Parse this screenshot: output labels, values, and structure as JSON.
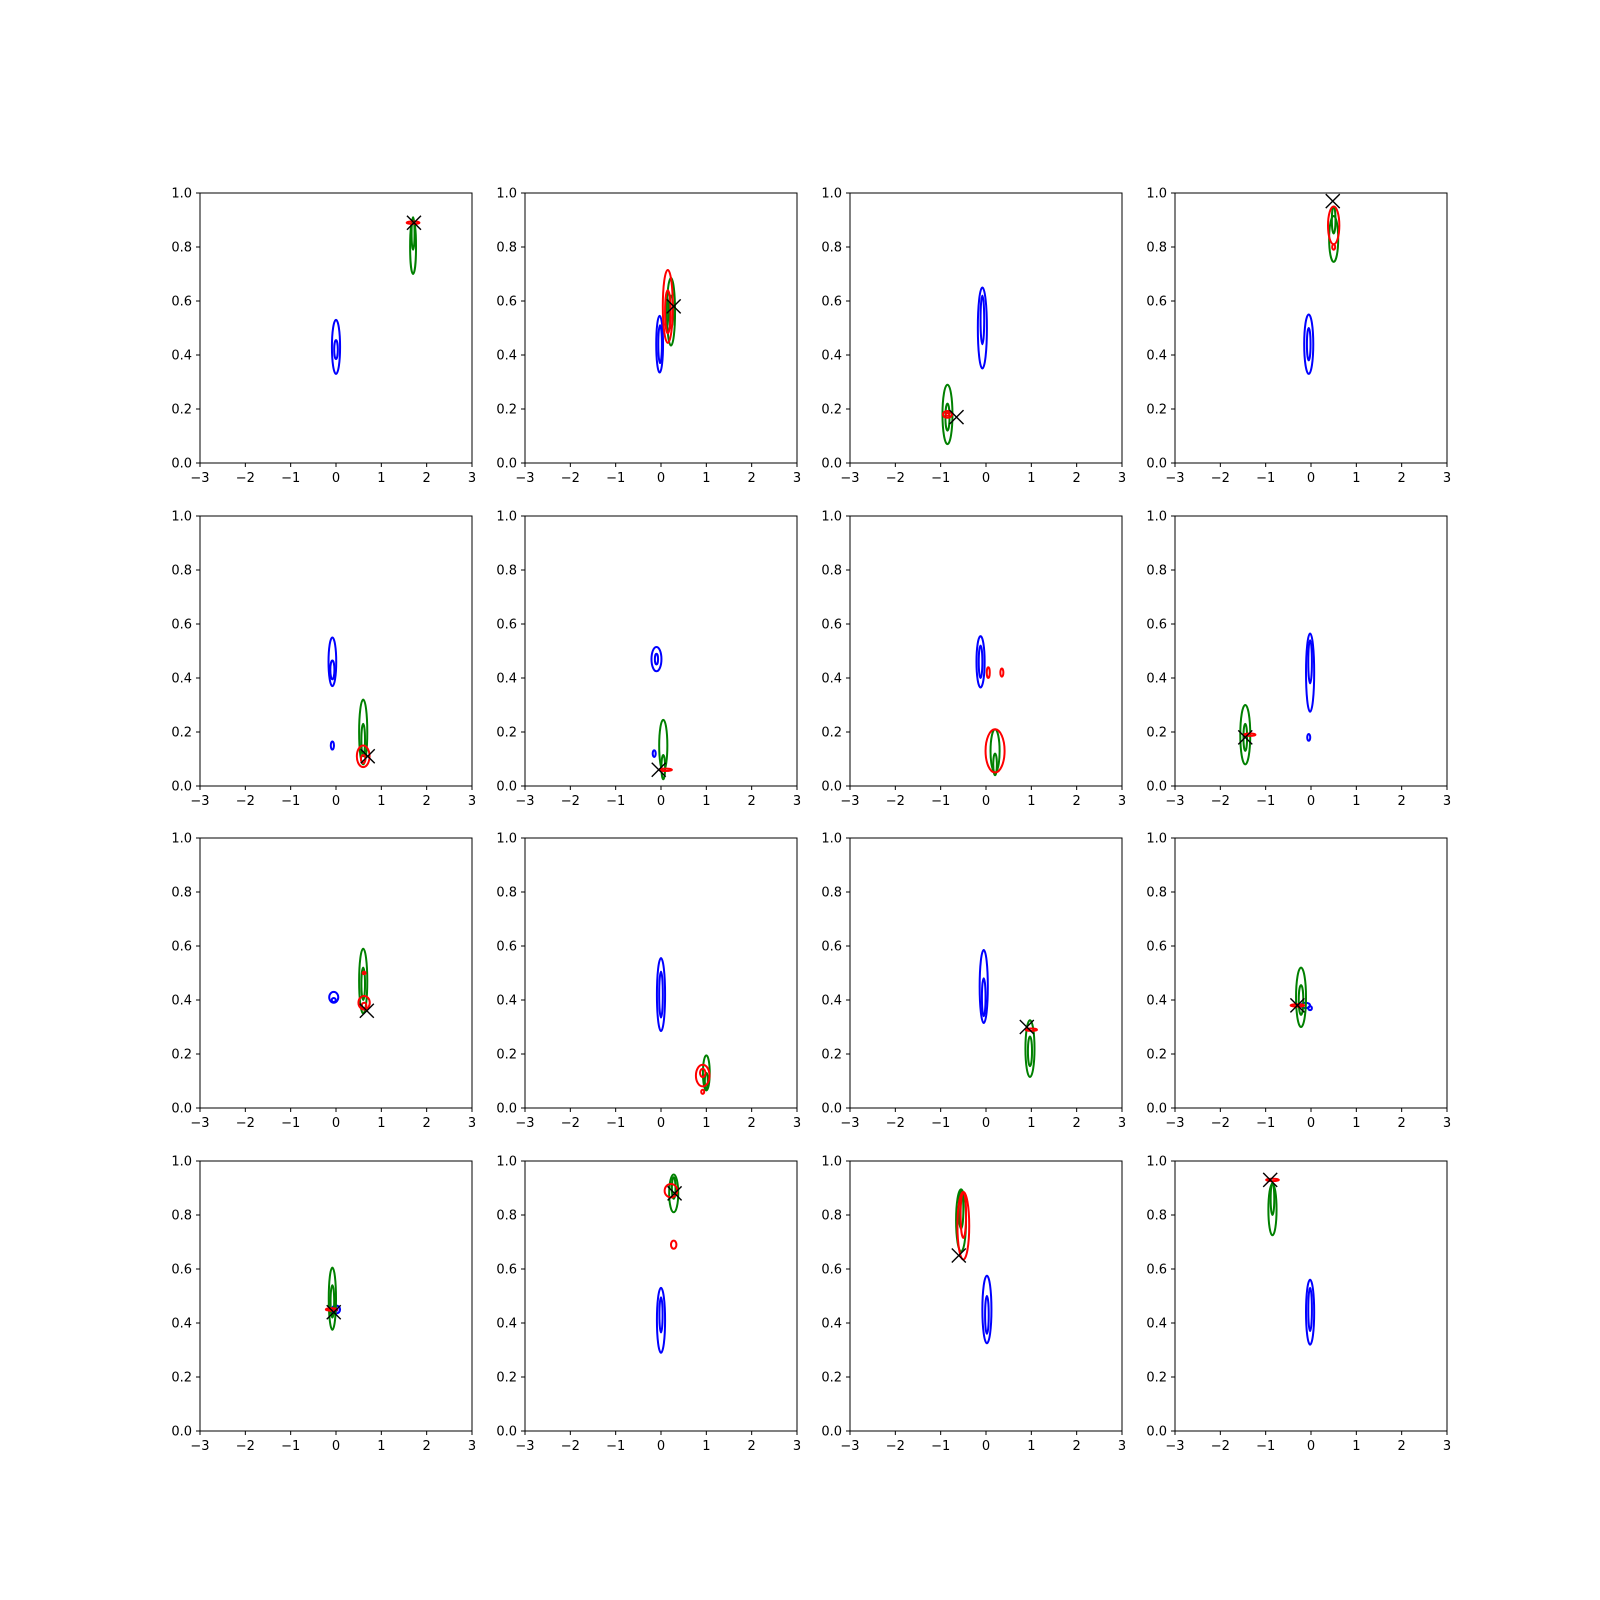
{
  "chart_data": {
    "type": "contour",
    "grid": {
      "rows": 4,
      "cols": 4
    },
    "xlim": [
      -3,
      3
    ],
    "ylim": [
      0,
      1
    ],
    "xticks": [
      "−3",
      "−2",
      "−1",
      "0",
      "1",
      "2",
      "3"
    ],
    "yticks": [
      "0.0",
      "0.2",
      "0.4",
      "0.6",
      "0.8",
      "1.0"
    ],
    "colors": {
      "blue": "#0000ff",
      "green": "#008000",
      "red": "#ff0000",
      "marker": "#000000"
    },
    "panels": [
      {
        "blue": [
          [
            0.0,
            0.43,
            0.18,
            0.2
          ],
          [
            0.0,
            0.42,
            0.08,
            0.07
          ]
        ],
        "green": [
          [
            1.7,
            0.8,
            0.13,
            0.2
          ],
          [
            1.7,
            0.85,
            0.06,
            0.12
          ]
        ],
        "red": [
          [
            1.7,
            0.89,
            0.28,
            0.006
          ]
        ],
        "marker": [
          1.72,
          0.89
        ]
      },
      {
        "blue": [
          [
            -0.03,
            0.44,
            0.15,
            0.21
          ],
          [
            -0.02,
            0.44,
            0.08,
            0.14
          ]
        ],
        "green": [
          [
            0.22,
            0.56,
            0.18,
            0.25
          ],
          [
            0.22,
            0.56,
            0.1,
            0.12
          ]
        ],
        "red": [
          [
            0.15,
            0.58,
            0.22,
            0.27
          ],
          [
            0.15,
            0.56,
            0.12,
            0.16
          ]
        ],
        "marker": [
          0.28,
          0.58
        ]
      },
      {
        "blue": [
          [
            -0.08,
            0.5,
            0.2,
            0.3
          ],
          [
            -0.08,
            0.53,
            0.08,
            0.18
          ]
        ],
        "green": [
          [
            -0.85,
            0.18,
            0.22,
            0.22
          ],
          [
            -0.85,
            0.17,
            0.09,
            0.1
          ]
        ],
        "red": [
          [
            -0.85,
            0.18,
            0.2,
            0.025
          ],
          [
            -0.85,
            0.18,
            0.08,
            0.01
          ]
        ],
        "marker": [
          -0.65,
          0.17
        ]
      },
      {
        "blue": [
          [
            -0.05,
            0.44,
            0.2,
            0.22
          ],
          [
            -0.05,
            0.44,
            0.08,
            0.12
          ]
        ],
        "green": [
          [
            0.5,
            0.83,
            0.2,
            0.17
          ],
          [
            0.5,
            0.9,
            0.08,
            0.1
          ]
        ],
        "red": [
          [
            0.5,
            0.88,
            0.25,
            0.14
          ],
          [
            0.5,
            0.8,
            0.05,
            0.02
          ]
        ],
        "marker": [
          0.48,
          0.97
        ]
      },
      {
        "blue": [
          [
            -0.08,
            0.46,
            0.17,
            0.18
          ],
          [
            -0.08,
            0.43,
            0.09,
            0.07
          ],
          [
            -0.08,
            0.15,
            0.07,
            0.03
          ]
        ],
        "green": [
          [
            0.6,
            0.2,
            0.18,
            0.24
          ],
          [
            0.6,
            0.17,
            0.08,
            0.12
          ]
        ],
        "red": [
          [
            0.6,
            0.11,
            0.28,
            0.08
          ],
          [
            0.6,
            0.1,
            0.1,
            0.03
          ]
        ],
        "marker": [
          0.7,
          0.11
        ]
      },
      {
        "blue": [
          [
            -0.1,
            0.47,
            0.22,
            0.09
          ],
          [
            -0.1,
            0.47,
            0.07,
            0.04
          ],
          [
            -0.15,
            0.12,
            0.03,
            0.025
          ]
        ],
        "green": [
          [
            0.05,
            0.15,
            0.18,
            0.19
          ],
          [
            0.05,
            0.07,
            0.08,
            0.09
          ]
        ],
        "red": [
          [
            0.1,
            0.06,
            0.28,
            0.006
          ]
        ],
        "marker": [
          -0.05,
          0.06
        ]
      },
      {
        "blue": [
          [
            -0.12,
            0.46,
            0.18,
            0.19
          ],
          [
            -0.12,
            0.46,
            0.08,
            0.12
          ]
        ],
        "green": [
          [
            0.2,
            0.13,
            0.2,
            0.16
          ],
          [
            0.2,
            0.08,
            0.08,
            0.08
          ]
        ],
        "red": [
          [
            0.2,
            0.13,
            0.42,
            0.16
          ],
          [
            0.05,
            0.42,
            0.06,
            0.04
          ],
          [
            0.35,
            0.42,
            0.04,
            0.03
          ]
        ],
        "marker": null
      },
      {
        "blue": [
          [
            -0.02,
            0.42,
            0.18,
            0.29
          ],
          [
            -0.02,
            0.46,
            0.08,
            0.16
          ],
          [
            -0.05,
            0.18,
            0.03,
            0.025
          ]
        ],
        "green": [
          [
            -1.45,
            0.19,
            0.22,
            0.22
          ],
          [
            -1.45,
            0.18,
            0.08,
            0.1
          ]
        ],
        "red": [
          [
            -1.35,
            0.19,
            0.25,
            0.006
          ]
        ],
        "marker": [
          -1.45,
          0.18
        ]
      },
      {
        "blue": [
          [
            -0.05,
            0.41,
            0.2,
            0.04
          ],
          [
            -0.05,
            0.4,
            0.09,
            0.015
          ]
        ],
        "green": [
          [
            0.6,
            0.47,
            0.18,
            0.24
          ],
          [
            0.6,
            0.46,
            0.08,
            0.12
          ]
        ],
        "red": [
          [
            0.62,
            0.39,
            0.25,
            0.05
          ],
          [
            0.62,
            0.38,
            0.1,
            0.02
          ],
          [
            0.62,
            0.5,
            0.015,
            0.006
          ]
        ],
        "marker": [
          0.68,
          0.36
        ]
      },
      {
        "blue": [
          [
            0.0,
            0.42,
            0.18,
            0.27
          ],
          [
            0.0,
            0.42,
            0.08,
            0.17
          ]
        ],
        "green": [
          [
            1.0,
            0.13,
            0.15,
            0.13
          ],
          [
            1.0,
            0.1,
            0.06,
            0.06
          ]
        ],
        "red": [
          [
            0.92,
            0.12,
            0.3,
            0.08
          ],
          [
            0.92,
            0.13,
            0.12,
            0.03
          ],
          [
            0.92,
            0.06,
            0.04,
            0.015
          ]
        ],
        "marker": null
      },
      {
        "blue": [
          [
            -0.05,
            0.45,
            0.18,
            0.27
          ],
          [
            -0.05,
            0.41,
            0.08,
            0.14
          ]
        ],
        "green": [
          [
            0.97,
            0.22,
            0.2,
            0.21
          ],
          [
            0.97,
            0.21,
            0.09,
            0.11
          ]
        ],
        "red": [
          [
            1.0,
            0.29,
            0.25,
            0.006
          ]
        ],
        "marker": [
          0.9,
          0.3
        ]
      },
      {
        "blue": [
          [
            -0.12,
            0.38,
            0.2,
            0.02
          ],
          [
            -0.02,
            0.37,
            0.08,
            0.015
          ]
        ],
        "green": [
          [
            -0.22,
            0.41,
            0.22,
            0.22
          ],
          [
            -0.22,
            0.4,
            0.1,
            0.11
          ]
        ],
        "red": [
          [
            -0.3,
            0.38,
            0.3,
            0.006
          ]
        ],
        "marker": [
          -0.3,
          0.38
        ]
      },
      {
        "blue": [
          [
            0.0,
            0.45,
            0.18,
            0.03
          ],
          [
            0.0,
            0.45,
            0.06,
            0.01
          ]
        ],
        "green": [
          [
            -0.08,
            0.49,
            0.16,
            0.23
          ],
          [
            -0.08,
            0.48,
            0.08,
            0.12
          ]
        ],
        "red": [
          [
            -0.1,
            0.45,
            0.25,
            0.006
          ]
        ],
        "marker": [
          -0.05,
          0.44
        ]
      },
      {
        "blue": [
          [
            0.0,
            0.41,
            0.18,
            0.24
          ],
          [
            0.0,
            0.43,
            0.07,
            0.13
          ]
        ],
        "green": [
          [
            0.28,
            0.88,
            0.2,
            0.14
          ],
          [
            0.28,
            0.9,
            0.08,
            0.08
          ]
        ],
        "red": [
          [
            0.22,
            0.89,
            0.28,
            0.05
          ],
          [
            0.28,
            0.69,
            0.12,
            0.03
          ]
        ],
        "marker": [
          0.3,
          0.88
        ]
      },
      {
        "blue": [
          [
            0.02,
            0.45,
            0.2,
            0.25
          ],
          [
            0.02,
            0.43,
            0.08,
            0.14
          ]
        ],
        "green": [
          [
            -0.55,
            0.78,
            0.22,
            0.23
          ],
          [
            -0.55,
            0.82,
            0.1,
            0.14
          ]
        ],
        "red": [
          [
            -0.5,
            0.76,
            0.26,
            0.25
          ],
          [
            -0.5,
            0.8,
            0.12,
            0.17
          ]
        ],
        "marker": [
          -0.6,
          0.65
        ]
      },
      {
        "blue": [
          [
            -0.02,
            0.44,
            0.18,
            0.24
          ],
          [
            -0.02,
            0.45,
            0.08,
            0.16
          ]
        ],
        "green": [
          [
            -0.85,
            0.82,
            0.18,
            0.19
          ],
          [
            -0.85,
            0.86,
            0.08,
            0.12
          ]
        ],
        "red": [
          [
            -0.85,
            0.93,
            0.28,
            0.006
          ]
        ],
        "marker": [
          -0.9,
          0.93
        ]
      }
    ]
  }
}
